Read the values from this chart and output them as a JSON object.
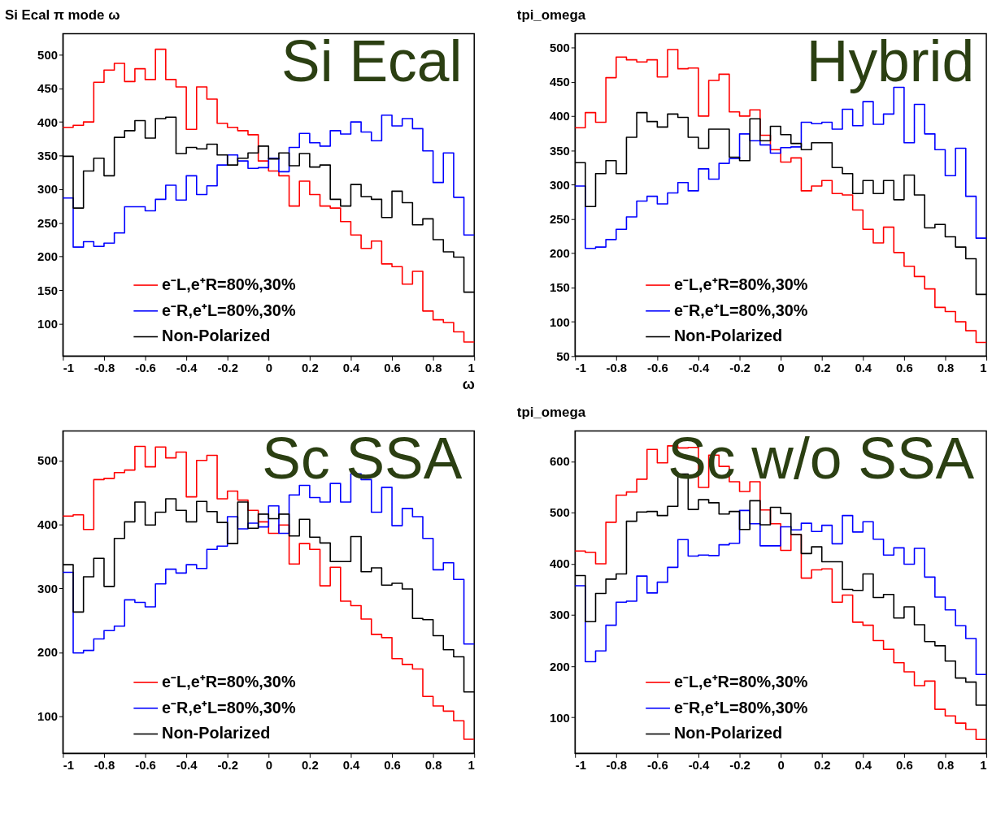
{
  "chart_data": [
    {
      "type": "histogram",
      "title": "Si Ecal π mode ω",
      "xlabel": "ω",
      "annotations": [
        "Si Ecal"
      ],
      "legend": "bottom left",
      "grid": false,
      "bins": [
        -1,
        -0.95,
        -0.9,
        -0.85,
        -0.8,
        -0.75,
        -0.7,
        -0.65,
        -0.6,
        -0.55,
        -0.5,
        -0.45,
        -0.4,
        -0.35,
        -0.3,
        -0.25,
        -0.2,
        -0.15,
        -0.1,
        -0.05,
        0,
        0.05,
        0.1,
        0.15,
        0.2,
        0.25,
        0.3,
        0.35,
        0.4,
        0.45,
        0.5,
        0.55,
        0.6,
        0.65,
        0.7,
        0.75,
        0.8,
        0.85,
        0.9,
        0.95,
        1
      ],
      "xlim": [
        -1,
        1
      ],
      "xticks": [
        -1,
        -0.8,
        -0.6,
        -0.4,
        -0.2,
        0,
        0.2,
        0.4,
        0.6,
        0.8,
        1
      ],
      "ylim": [
        52,
        531
      ],
      "yticks": [
        100,
        150,
        200,
        250,
        300,
        350,
        400,
        450,
        500
      ],
      "series": [
        {
          "name": "e⁻L,e⁺R=80%,30%",
          "color": "#ff0000",
          "values": [
            392,
            395,
            400,
            459,
            477,
            487,
            460,
            479,
            463,
            508,
            463,
            452,
            389,
            452,
            434,
            398,
            392,
            387,
            381,
            342,
            327,
            320,
            275,
            312,
            292,
            275,
            272,
            252,
            232,
            212,
            223,
            189,
            185,
            159,
            178,
            119,
            106,
            102,
            88,
            73
          ]
        },
        {
          "name": "e⁻R,e⁺L=80%,30%",
          "color": "#0000ff",
          "values": [
            287,
            214,
            222,
            215,
            220,
            235,
            274,
            274,
            268,
            285,
            306,
            284,
            320,
            292,
            305,
            336,
            351,
            342,
            331,
            332,
            346,
            326,
            362,
            383,
            369,
            364,
            387,
            382,
            400,
            385,
            372,
            410,
            394,
            405,
            390,
            357,
            310,
            354,
            288,
            232
          ]
        },
        {
          "name": "Non-Polarized",
          "color": "#000000",
          "values": [
            349,
            272,
            327,
            346,
            320,
            377,
            387,
            402,
            376,
            405,
            407,
            353,
            362,
            360,
            367,
            351,
            336,
            346,
            354,
            364,
            345,
            354,
            335,
            353,
            333,
            336,
            285,
            275,
            307,
            289,
            285,
            258,
            297,
            280,
            247,
            256,
            225,
            207,
            199,
            147
          ]
        }
      ]
    },
    {
      "type": "histogram",
      "title": "tpi_omega",
      "annotations": [
        "Hybrid"
      ],
      "legend": "bottom left",
      "grid": false,
      "bins": [
        -1,
        -0.95,
        -0.9,
        -0.85,
        -0.8,
        -0.75,
        -0.7,
        -0.65,
        -0.6,
        -0.55,
        -0.5,
        -0.45,
        -0.4,
        -0.35,
        -0.3,
        -0.25,
        -0.2,
        -0.15,
        -0.1,
        -0.05,
        0,
        0.05,
        0.1,
        0.15,
        0.2,
        0.25,
        0.3,
        0.35,
        0.4,
        0.45,
        0.5,
        0.55,
        0.6,
        0.65,
        0.7,
        0.75,
        0.8,
        0.85,
        0.9,
        0.95,
        1
      ],
      "xlim": [
        -1,
        1
      ],
      "xticks": [
        -1,
        -0.8,
        -0.6,
        -0.4,
        -0.2,
        0,
        0.2,
        0.4,
        0.6,
        0.8,
        1
      ],
      "ylim": [
        50,
        520
      ],
      "yticks": [
        50,
        100,
        150,
        200,
        250,
        300,
        350,
        400,
        450,
        500
      ],
      "series": [
        {
          "name": "e⁻L,e⁺R=80%,30%",
          "color": "#ff0000",
          "values": [
            383,
            405,
            391,
            456,
            486,
            482,
            479,
            482,
            457,
            497,
            469,
            470,
            400,
            452,
            461,
            406,
            400,
            409,
            372,
            351,
            333,
            339,
            291,
            298,
            306,
            287,
            285,
            263,
            235,
            215,
            238,
            201,
            181,
            166,
            148,
            121,
            115,
            100,
            87,
            70
          ]
        },
        {
          "name": "e⁻R,e⁺L=80%,30%",
          "color": "#0000ff",
          "values": [
            298,
            207,
            209,
            220,
            235,
            253,
            276,
            283,
            272,
            288,
            303,
            291,
            323,
            308,
            331,
            338,
            374,
            364,
            358,
            346,
            354,
            355,
            391,
            389,
            391,
            381,
            410,
            386,
            421,
            388,
            403,
            442,
            361,
            417,
            374,
            351,
            313,
            353,
            283,
            222
          ]
        },
        {
          "name": "Non-Polarized",
          "color": "#000000",
          "values": [
            332,
            268,
            316,
            335,
            316,
            369,
            405,
            392,
            384,
            403,
            398,
            369,
            353,
            381,
            381,
            340,
            335,
            396,
            364,
            385,
            373,
            360,
            351,
            361,
            361,
            325,
            316,
            287,
            306,
            287,
            306,
            278,
            314,
            285,
            237,
            242,
            224,
            209,
            192,
            140
          ]
        }
      ]
    },
    {
      "type": "histogram",
      "annotations": [
        "Sc SSA"
      ],
      "legend": "bottom left",
      "grid": false,
      "bins": [
        -1,
        -0.95,
        -0.9,
        -0.85,
        -0.8,
        -0.75,
        -0.7,
        -0.65,
        -0.6,
        -0.55,
        -0.5,
        -0.45,
        -0.4,
        -0.35,
        -0.3,
        -0.25,
        -0.2,
        -0.15,
        -0.1,
        -0.05,
        0,
        0.05,
        0.1,
        0.15,
        0.2,
        0.25,
        0.3,
        0.35,
        0.4,
        0.45,
        0.5,
        0.55,
        0.6,
        0.65,
        0.7,
        0.75,
        0.8,
        0.85,
        0.9,
        0.95,
        1
      ],
      "xlim": [
        -1,
        1
      ],
      "xticks": [
        -1,
        -0.8,
        -0.6,
        -0.4,
        -0.2,
        0,
        0.2,
        0.4,
        0.6,
        0.8,
        1
      ],
      "ylim": [
        42,
        546
      ],
      "yticks": [
        100,
        200,
        300,
        400,
        500
      ],
      "series": [
        {
          "name": "e⁻L,e⁺R=80%,30%",
          "color": "#ff0000",
          "values": [
            413,
            415,
            392,
            470,
            472,
            481,
            485,
            522,
            490,
            521,
            504,
            513,
            443,
            500,
            508,
            440,
            452,
            438,
            422,
            404,
            386,
            399,
            338,
            370,
            361,
            304,
            333,
            280,
            273,
            252,
            228,
            223,
            190,
            181,
            174,
            131,
            116,
            108,
            93,
            64
          ]
        },
        {
          "name": "e⁻R,e⁺L=80%,30%",
          "color": "#0000ff",
          "values": [
            325,
            199,
            203,
            221,
            234,
            241,
            282,
            278,
            271,
            307,
            330,
            324,
            337,
            331,
            361,
            366,
            412,
            393,
            402,
            396,
            429,
            386,
            446,
            461,
            442,
            435,
            464,
            435,
            479,
            470,
            419,
            458,
            398,
            425,
            412,
            378,
            329,
            340,
            314,
            213
          ]
        },
        {
          "name": "Non-Polarized",
          "color": "#000000",
          "values": [
            337,
            263,
            318,
            347,
            303,
            378,
            404,
            435,
            399,
            419,
            440,
            422,
            404,
            436,
            420,
            403,
            370,
            435,
            394,
            416,
            409,
            416,
            382,
            408,
            380,
            371,
            342,
            342,
            381,
            326,
            332,
            305,
            308,
            299,
            253,
            251,
            226,
            204,
            193,
            138
          ]
        }
      ]
    },
    {
      "type": "histogram",
      "title": "tpi_omega",
      "annotations": [
        "Sc w/o SSA"
      ],
      "legend": "bottom left",
      "grid": false,
      "bins": [
        -1,
        -0.95,
        -0.9,
        -0.85,
        -0.8,
        -0.75,
        -0.7,
        -0.65,
        -0.6,
        -0.55,
        -0.5,
        -0.45,
        -0.4,
        -0.35,
        -0.3,
        -0.25,
        -0.2,
        -0.15,
        -0.1,
        -0.05,
        0,
        0.05,
        0.1,
        0.15,
        0.2,
        0.25,
        0.3,
        0.35,
        0.4,
        0.45,
        0.5,
        0.55,
        0.6,
        0.65,
        0.7,
        0.75,
        0.8,
        0.85,
        0.9,
        0.95,
        1
      ],
      "xlim": [
        -1,
        1
      ],
      "xticks": [
        -1,
        -0.8,
        -0.6,
        -0.4,
        -0.2,
        0,
        0.2,
        0.4,
        0.6,
        0.8,
        1
      ],
      "ylim": [
        30,
        659
      ],
      "yticks": [
        100,
        200,
        300,
        400,
        500,
        600
      ],
      "series": [
        {
          "name": "e⁻L,e⁺R=80%,30%",
          "color": "#ff0000",
          "values": [
            425,
            422,
            400,
            481,
            534,
            540,
            565,
            623,
            597,
            630,
            626,
            627,
            549,
            612,
            590,
            560,
            541,
            560,
            505,
            478,
            426,
            457,
            372,
            388,
            390,
            325,
            339,
            286,
            280,
            250,
            233,
            207,
            189,
            162,
            171,
            116,
            103,
            89,
            77,
            57
          ]
        },
        {
          "name": "e⁻R,e⁺L=80%,30%",
          "color": "#0000ff",
          "values": [
            357,
            209,
            230,
            280,
            325,
            327,
            376,
            343,
            364,
            393,
            447,
            415,
            417,
            416,
            437,
            440,
            504,
            478,
            435,
            435,
            472,
            466,
            479,
            463,
            475,
            439,
            494,
            462,
            482,
            448,
            417,
            431,
            399,
            430,
            374,
            335,
            310,
            279,
            254,
            184
          ]
        },
        {
          "name": "Non-Polarized",
          "color": "#000000",
          "values": [
            377,
            287,
            342,
            370,
            380,
            483,
            501,
            502,
            494,
            512,
            575,
            506,
            525,
            519,
            497,
            502,
            467,
            523,
            476,
            510,
            498,
            457,
            420,
            433,
            404,
            404,
            350,
            348,
            380,
            334,
            340,
            294,
            316,
            281,
            248,
            240,
            210,
            177,
            169,
            124
          ]
        }
      ]
    }
  ]
}
